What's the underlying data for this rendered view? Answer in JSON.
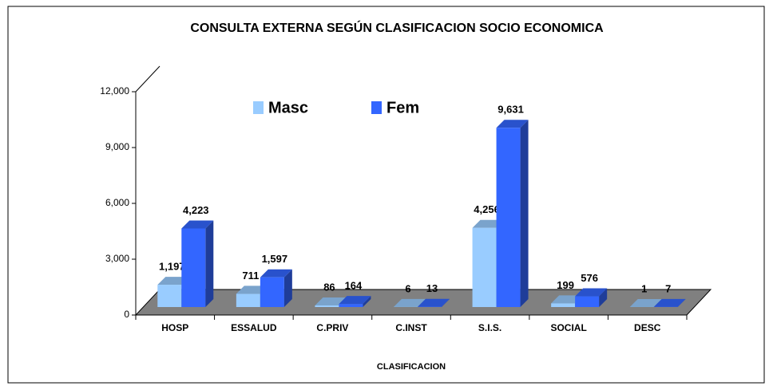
{
  "chart_data": {
    "type": "bar3d",
    "title": "CONSULTA EXTERNA SEGÚN CLASIFICACION SOCIO ECONOMICA",
    "x_label": "CLASIFICACION",
    "categories": [
      "HOSP",
      "ESSALUD",
      "C.PRIV",
      "C.INST",
      "S.I.S.",
      "SOCIAL",
      "DESC"
    ],
    "series": [
      {
        "name": "Masc",
        "color": "#99ccff",
        "values": [
          1197,
          711,
          86,
          6,
          4256,
          199,
          1
        ],
        "value_labels": [
          "1,197",
          "711",
          "86",
          "6",
          "4,256",
          "199",
          "1"
        ]
      },
      {
        "name": "Fem",
        "color": "#3366ff",
        "values": [
          4223,
          1597,
          164,
          13,
          9631,
          576,
          7
        ],
        "value_labels": [
          "4,223",
          "1,597",
          "164",
          "13",
          "9,631",
          "576",
          "7"
        ]
      }
    ],
    "ylim": [
      0,
      12000
    ],
    "yticks": [
      0,
      {
        "value": 3000,
        "label": "3,000"
      },
      {
        "value": 6000,
        "label": "6,000"
      },
      {
        "value": 9000,
        "label": "9,000"
      },
      {
        "value": 12000,
        "label": "12,000"
      }
    ],
    "legend": "top"
  }
}
